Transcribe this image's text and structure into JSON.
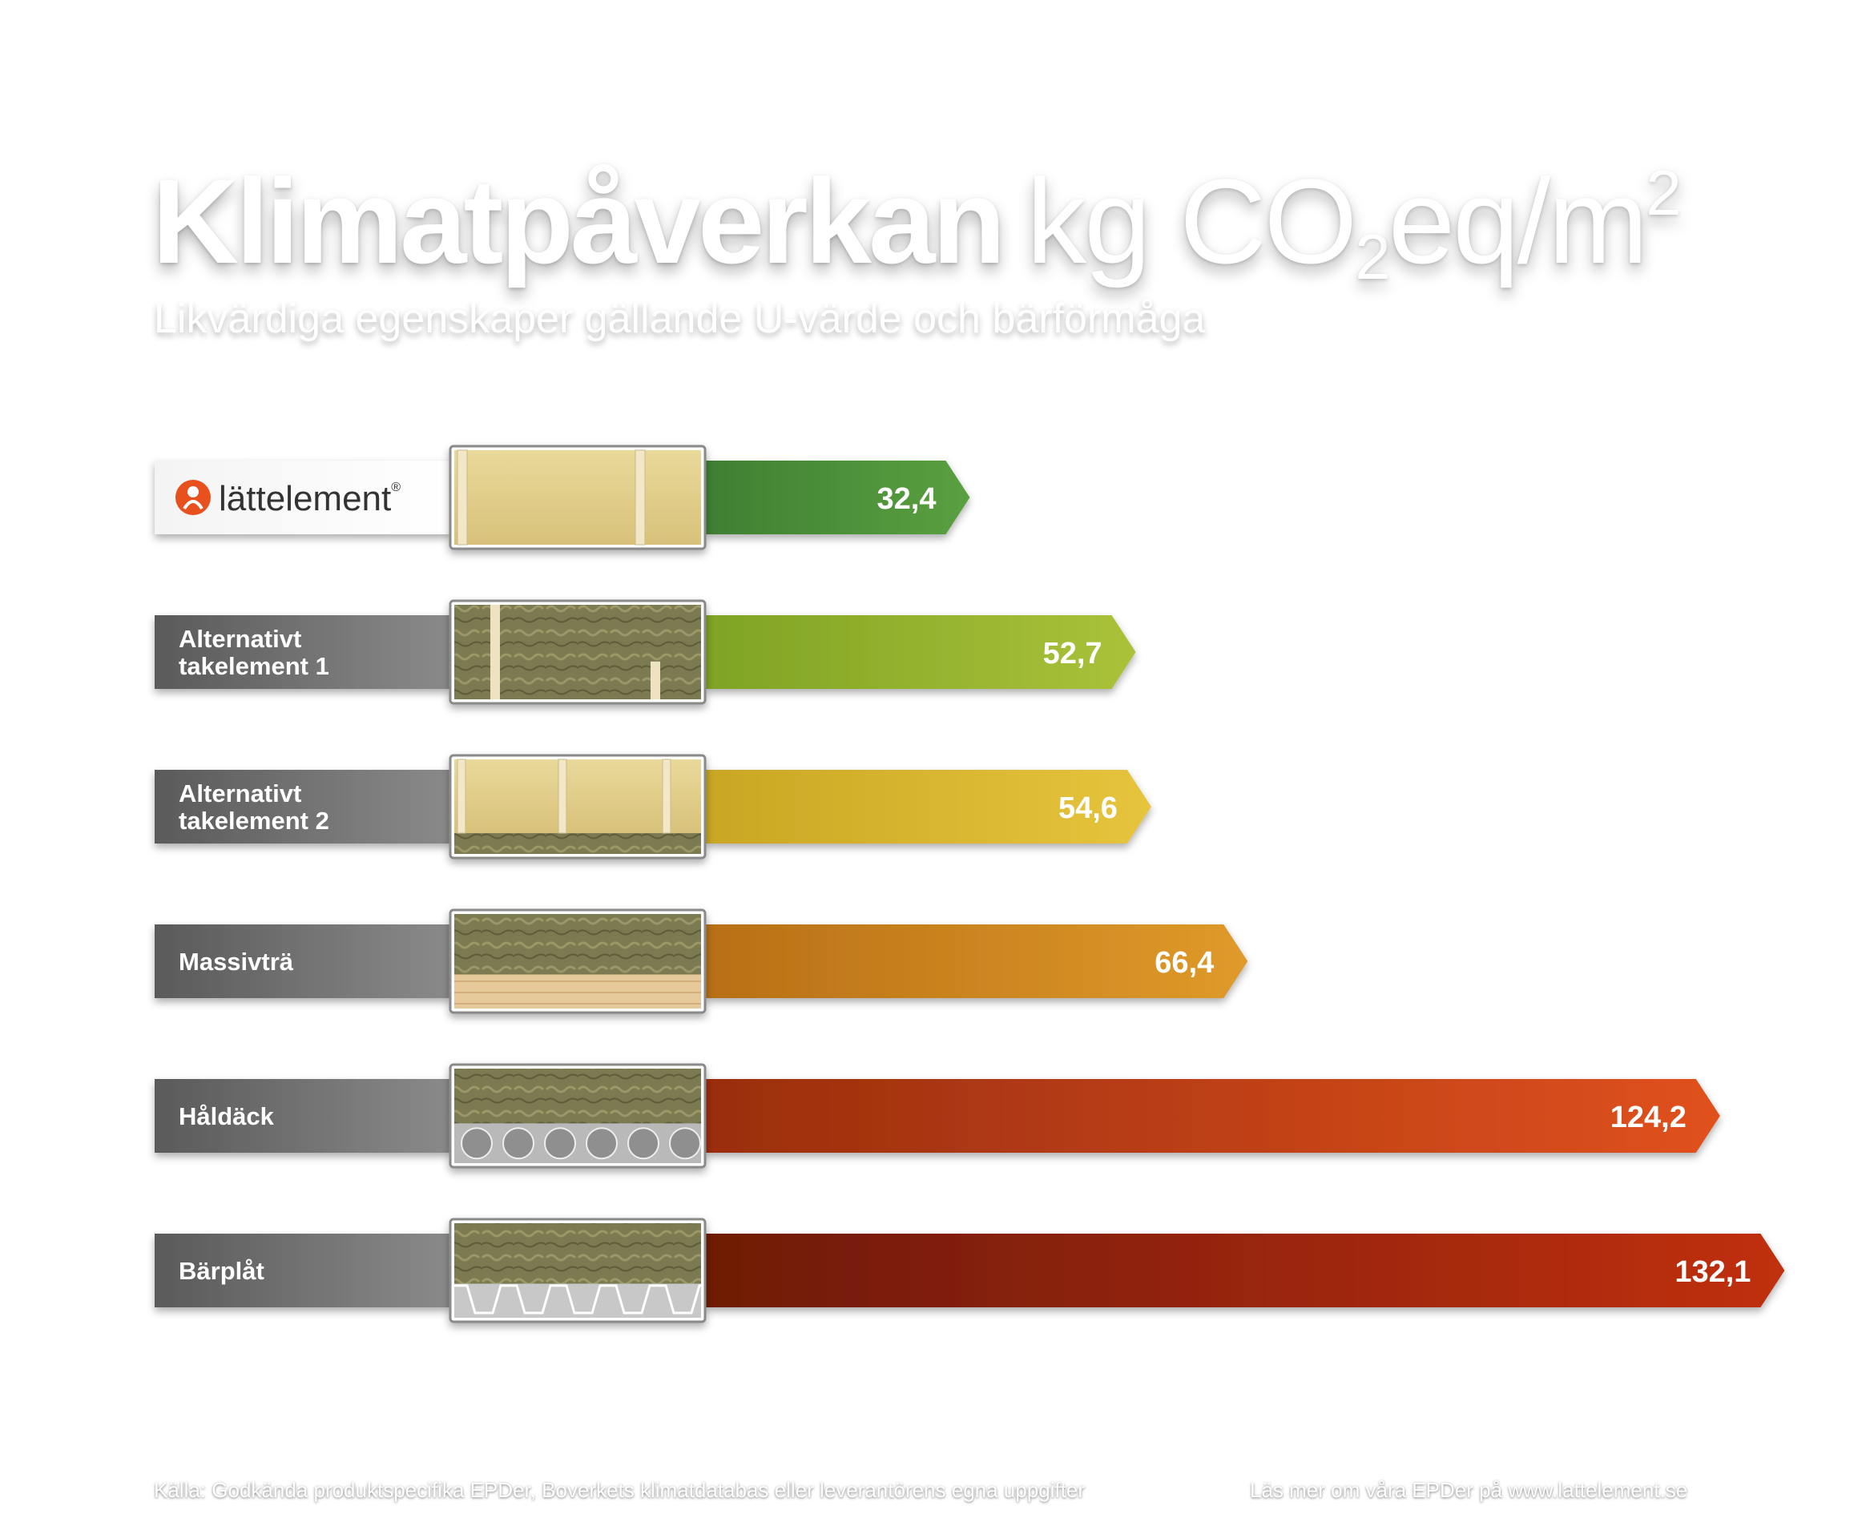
{
  "title": {
    "main": "Klimatpåverkan",
    "unit_prefix": "kg CO",
    "unit_sub": "2",
    "unit_mid": "eq/m",
    "unit_sup": "2"
  },
  "subtitle": "Likvärdiga egenskaper gällande U-värde och bärförmåga",
  "brand": {
    "name": "lättelement",
    "mark": "®",
    "accent": "#e8501e"
  },
  "footer": {
    "source": "Källa: Godkända produktspecifika EPDer, Boverkets klimatdatabas eller leverantörens egna uppgifter",
    "link": "Läs mer om våra EPDer på www.lattelement.se"
  },
  "chart_data": {
    "type": "bar",
    "orientation": "horizontal",
    "title": "Klimatpåverkan kg CO2eq/m2",
    "subtitle": "Likvärdiga egenskaper gällande U-värde och bärförmåga",
    "categories": [
      "lättelement",
      "Alternativt takelement 1",
      "Alternativt takelement 2",
      "Massivträ",
      "Håldäck",
      "Bärplåt"
    ],
    "category_lines": [
      [
        "lättelement"
      ],
      [
        "Alternativt",
        "takelement 1"
      ],
      [
        "Alternativt",
        "takelement 2"
      ],
      [
        "Massivträ"
      ],
      [
        "Håldäck"
      ],
      [
        "Bärplåt"
      ]
    ],
    "values": [
      32.4,
      52.7,
      54.6,
      66.4,
      124.2,
      132.1
    ],
    "value_labels": [
      "32,4",
      "52,7",
      "54,6",
      "66,4",
      "124,2",
      "132,1"
    ],
    "colors": [
      [
        "#3f7f33",
        "#5aa040"
      ],
      [
        "#7fa324",
        "#aac23a"
      ],
      [
        "#c9a724",
        "#e6c43c"
      ],
      [
        "#b86f16",
        "#df9a2a"
      ],
      [
        "#9a2e0e",
        "#e0511e"
      ],
      [
        "#6e1a06",
        "#c0300e"
      ]
    ],
    "cross_sections": [
      "lattelement",
      "rib-panel",
      "box-panel",
      "clt",
      "hollowcore",
      "steel-deck"
    ],
    "xlabel": "",
    "ylabel": "",
    "legend": "none",
    "grid": false
  }
}
